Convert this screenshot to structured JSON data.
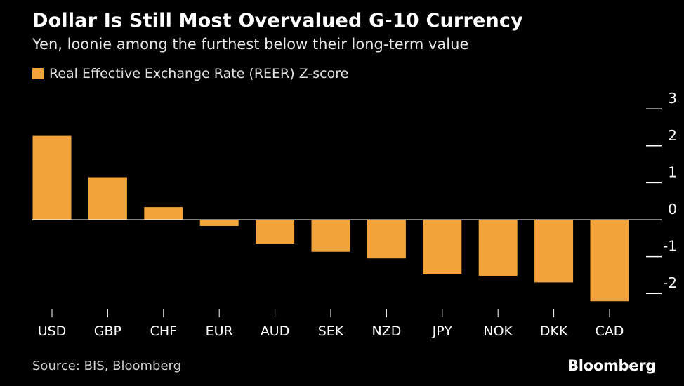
{
  "title": "Dollar Is Still Most Overvalued G-10 Currency",
  "subtitle": "Yen, loonie among the furthest below their long-term value",
  "source": "Source: BIS, Bloomberg",
  "brand": "Bloomberg",
  "colors": {
    "bar": "#f2a43a",
    "background": "#000000",
    "text": "#ffffff",
    "axis": "#ffffff"
  },
  "chart_data": {
    "type": "bar",
    "legend": [
      "Real Effective Exchange Rate (REER) Z-score"
    ],
    "categories": [
      "USD",
      "GBP",
      "CHF",
      "EUR",
      "AUD",
      "SEK",
      "NZD",
      "JPY",
      "NOK",
      "DKK",
      "CAD"
    ],
    "series": [
      {
        "name": "Real Effective Exchange Rate (REER) Z-score",
        "values": [
          2.27,
          1.15,
          0.34,
          -0.17,
          -0.65,
          -0.87,
          -1.05,
          -1.48,
          -1.52,
          -1.7,
          -2.21
        ]
      }
    ],
    "y_ticks": [
      "3",
      "2",
      "1",
      "0",
      "-1",
      "-2"
    ],
    "ylim": [
      -2.5,
      3
    ],
    "grid": false,
    "legend_position": "top-left",
    "y_axis_position": "right"
  }
}
